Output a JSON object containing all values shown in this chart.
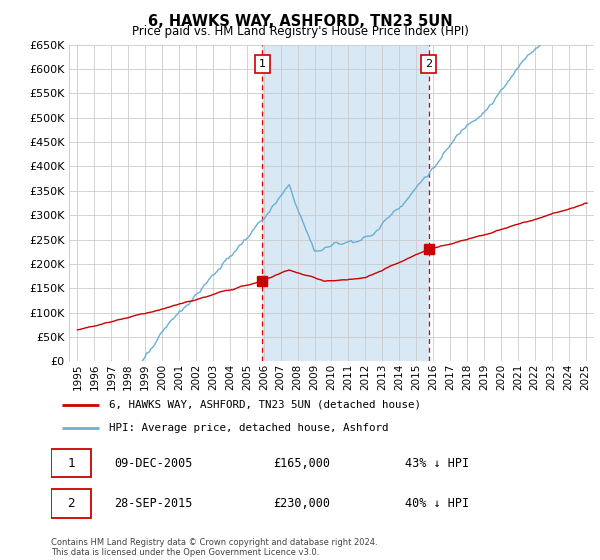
{
  "title": "6, HAWKS WAY, ASHFORD, TN23 5UN",
  "subtitle": "Price paid vs. HM Land Registry's House Price Index (HPI)",
  "hpi_color": "#6baed6",
  "price_color": "#cc0000",
  "marker_color": "#cc0000",
  "plot_bg_color": "#ffffff",
  "shade_color": "#d8e8f5",
  "grid_color": "#cccccc",
  "ylim": [
    0,
    650000
  ],
  "yticks": [
    0,
    50000,
    100000,
    150000,
    200000,
    250000,
    300000,
    350000,
    400000,
    450000,
    500000,
    550000,
    600000,
    650000
  ],
  "xlim_start": 1995,
  "xlim_end": 2025,
  "sale1_year": 2005.92,
  "sale1_price": 165000,
  "sale2_year": 2015.75,
  "sale2_price": 230000,
  "legend_price_label": "6, HAWKS WAY, ASHFORD, TN23 5UN (detached house)",
  "legend_hpi_label": "HPI: Average price, detached house, Ashford",
  "note1_date": "09-DEC-2005",
  "note1_price": "£165,000",
  "note1_hpi": "43% ↓ HPI",
  "note2_date": "28-SEP-2015",
  "note2_price": "£230,000",
  "note2_hpi": "40% ↓ HPI",
  "footer": "Contains HM Land Registry data © Crown copyright and database right 2024.\nThis data is licensed under the Open Government Licence v3.0."
}
